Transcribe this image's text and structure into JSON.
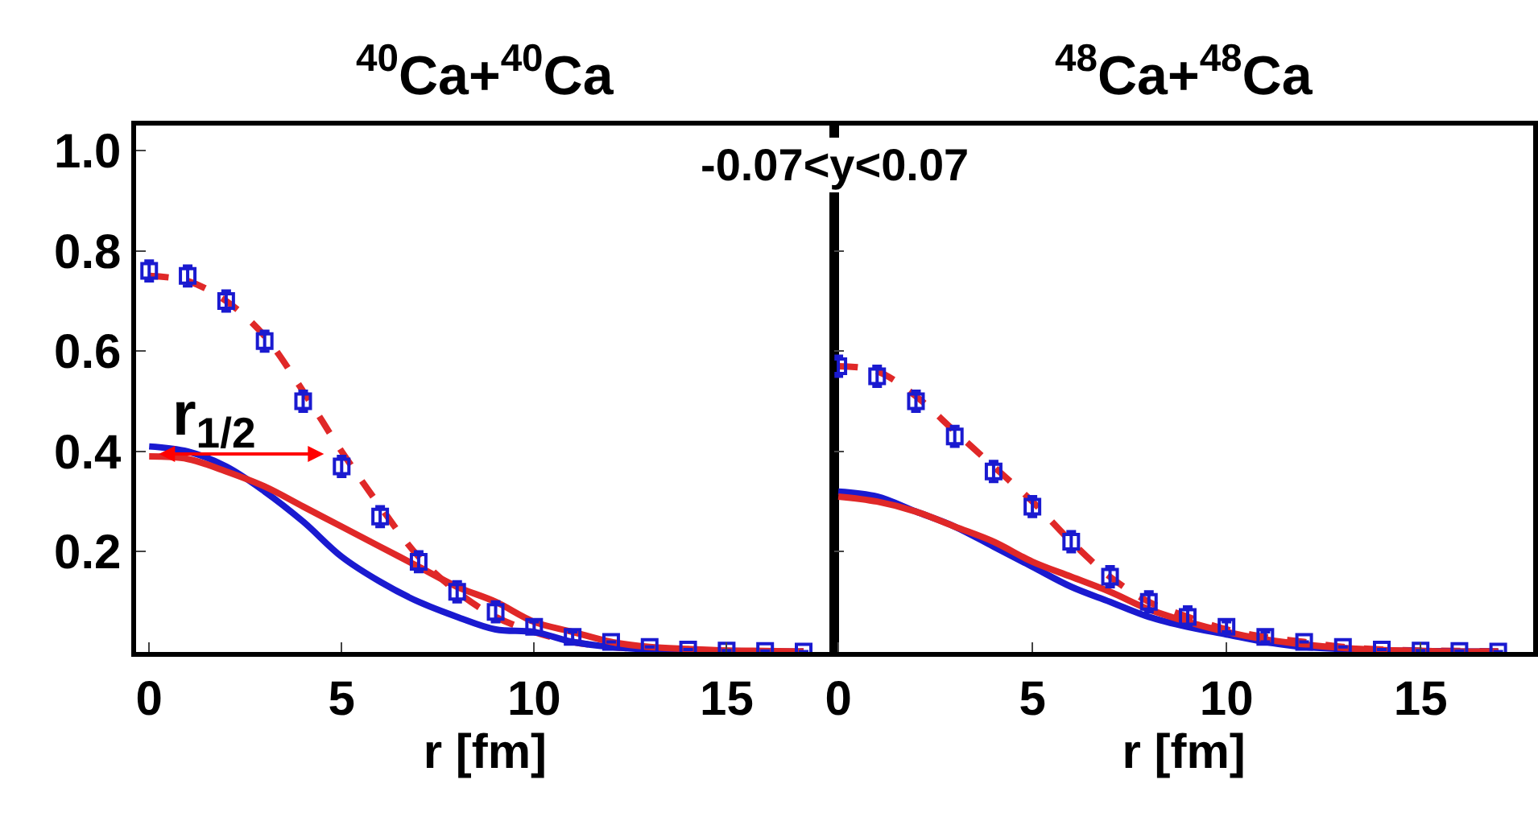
{
  "chart_data": [
    {
      "type": "line",
      "title": "$^{40}$Ca+$^{40}$Ca",
      "xlabel": "r [fm]",
      "x": [
        0,
        1,
        2,
        3,
        4,
        5,
        6,
        7,
        8,
        9,
        10,
        11,
        12,
        13,
        14,
        15,
        16,
        17
      ],
      "xlim": [
        -0.35,
        17.8
      ],
      "xticks": [
        0,
        5,
        10,
        15
      ],
      "ylim": [
        0,
        1.05
      ],
      "yticks": [
        0.2,
        0.4,
        0.6,
        0.8,
        {
          "value": 1.0,
          "label": "1.0"
        }
      ],
      "grid": false,
      "annotations": [
        "-0.07<y<0.07",
        "r$_{1/2}$"
      ],
      "series": [
        {
          "type": "scatter",
          "marker": "square",
          "color": "#1a1ad0",
          "values": [
            0.76,
            0.75,
            0.7,
            0.62,
            0.5,
            0.37,
            0.27,
            0.18,
            0.12,
            0.08,
            0.05,
            0.03,
            0.02,
            0.01,
            0.005,
            0.003,
            0.002,
            0.001
          ],
          "errors": [
            0.02,
            0.02,
            0.02,
            0.02,
            0.02,
            0.02,
            0.02,
            0.02,
            0.02,
            0.02,
            0.01,
            0.01,
            null,
            null,
            null,
            null,
            null,
            null
          ]
        },
        {
          "line_style": "dashed",
          "color": "#e02828",
          "values": [
            0.75,
            0.74,
            0.7,
            0.63,
            0.52,
            0.4,
            0.29,
            0.19,
            0.12,
            0.07,
            0.04,
            0.02,
            0.01,
            0.005,
            0.002,
            0.002,
            0.001,
            0.001
          ]
        },
        {
          "line_style": "solid",
          "color": "#1a1ad0",
          "values": [
            0.41,
            0.4,
            0.37,
            0.32,
            0.26,
            0.19,
            0.14,
            0.1,
            0.07,
            0.045,
            0.04,
            0.02,
            0.01,
            0.005,
            0.003,
            0.002,
            0.001,
            0.001
          ]
        },
        {
          "line_style": "solid",
          "color": "#e02828",
          "values": [
            0.39,
            0.385,
            0.36,
            0.33,
            0.29,
            0.25,
            0.21,
            0.17,
            0.13,
            0.1,
            0.06,
            0.04,
            0.02,
            0.01,
            0.006,
            0.003,
            0.002,
            0.001
          ]
        }
      ]
    },
    {
      "type": "line",
      "title": "$^{48}$Ca+$^{48}$Ca",
      "xlabel": "r [fm]",
      "x": [
        0,
        1,
        2,
        3,
        4,
        5,
        6,
        7,
        8,
        9,
        10,
        11,
        12,
        13,
        14,
        15,
        16,
        17
      ],
      "xlim": [
        -0.1,
        17.9
      ],
      "xticks": [
        0,
        5,
        10,
        15
      ],
      "ylim": [
        0,
        1.05
      ],
      "yticks": [
        0.2,
        0.4,
        0.6,
        0.8,
        1.0
      ],
      "grid": false,
      "tick_labels": "x",
      "series": [
        {
          "type": "scatter",
          "marker": "square",
          "color": "#1a1ad0",
          "values": [
            0.57,
            0.55,
            0.5,
            0.43,
            0.36,
            0.29,
            0.22,
            0.15,
            0.1,
            0.07,
            0.05,
            0.03,
            0.02,
            0.01,
            0.005,
            0.003,
            0.002,
            0.001
          ],
          "errors": [
            0.02,
            0.02,
            0.02,
            0.02,
            0.02,
            0.02,
            0.02,
            0.02,
            0.02,
            0.02,
            0.01,
            0.01,
            null,
            null,
            null,
            null,
            null,
            null
          ]
        },
        {
          "line_style": "dashed",
          "color": "#e02828",
          "values": [
            0.57,
            0.56,
            0.51,
            0.44,
            0.37,
            0.3,
            0.22,
            0.15,
            0.1,
            0.07,
            0.045,
            0.03,
            0.02,
            0.01,
            0.005,
            0.003,
            0.002,
            0.001
          ]
        },
        {
          "line_style": "solid",
          "color": "#1a1ad0",
          "values": [
            0.32,
            0.31,
            0.28,
            0.25,
            0.21,
            0.17,
            0.13,
            0.1,
            0.07,
            0.05,
            0.035,
            0.02,
            0.01,
            0.006,
            0.003,
            0.002,
            0.001,
            0.001
          ]
        },
        {
          "line_style": "solid",
          "color": "#e02828",
          "values": [
            0.31,
            0.3,
            0.28,
            0.25,
            0.22,
            0.18,
            0.15,
            0.12,
            0.085,
            0.06,
            0.04,
            0.025,
            0.015,
            0.008,
            0.004,
            0.002,
            0.001,
            0.001
          ]
        }
      ]
    }
  ]
}
